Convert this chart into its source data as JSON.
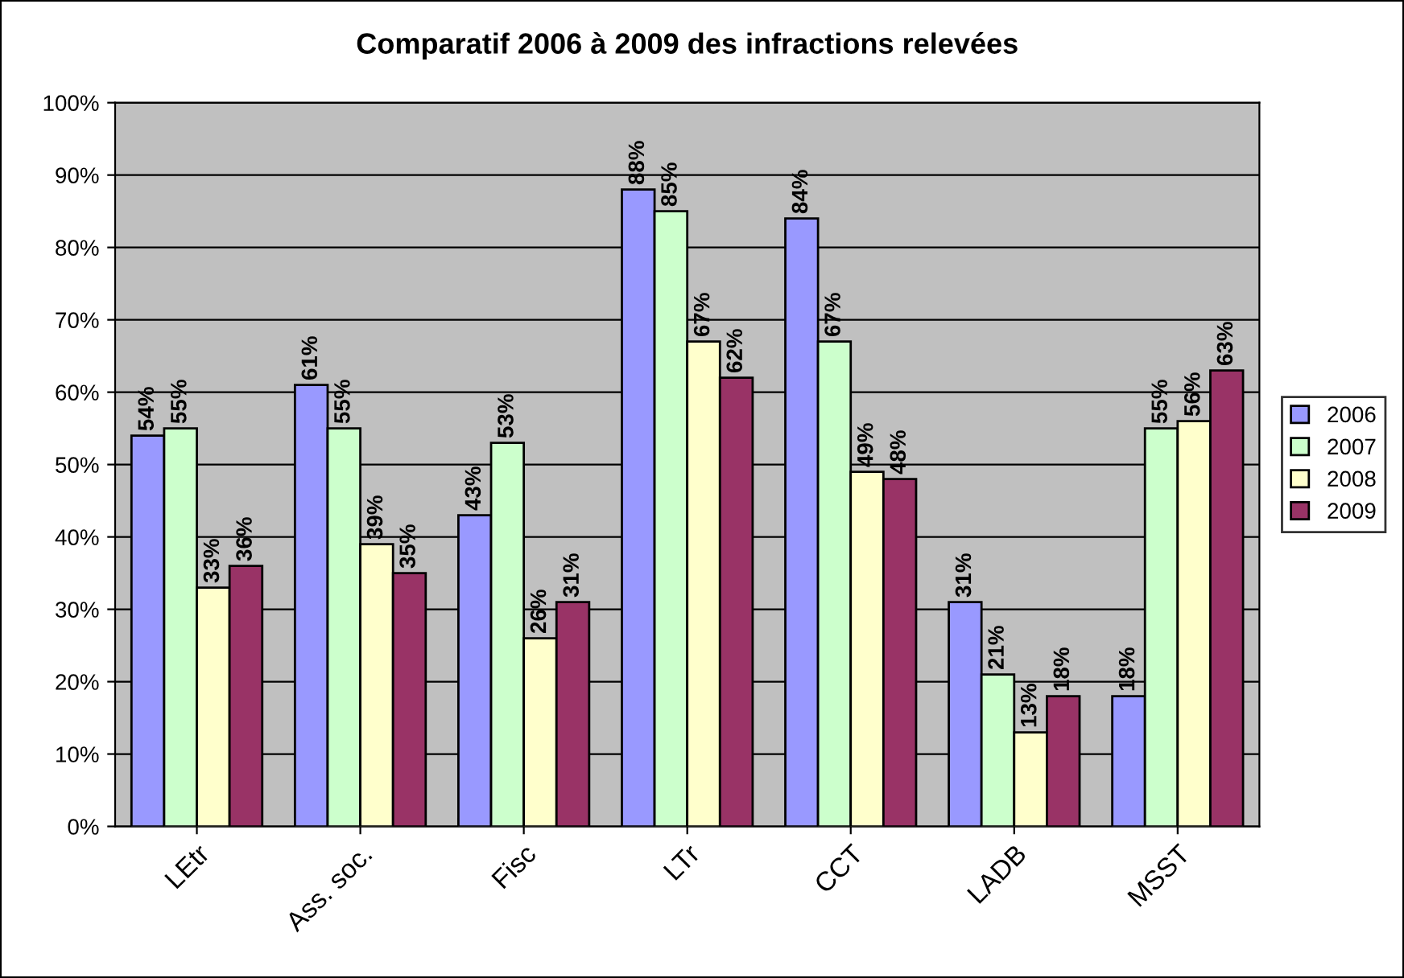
{
  "chart_data": {
    "type": "bar",
    "title": "Comparatif 2006 à 2009 des infractions relevées",
    "categories": [
      "LEtr",
      "Ass. soc.",
      "Fisc",
      "LTr",
      "CCT",
      "LADB",
      "MSST"
    ],
    "series": [
      {
        "name": "2006",
        "color": "#9999ff",
        "values": [
          54,
          61,
          43,
          88,
          84,
          31,
          18
        ],
        "value_labels": [
          "54%",
          "61%",
          "43%",
          "88%",
          "84%",
          "31%",
          "18%"
        ]
      },
      {
        "name": "2007",
        "color": "#ccffcc",
        "values": [
          55,
          55,
          53,
          85,
          67,
          21,
          55
        ],
        "value_labels": [
          "55%",
          "55%",
          "53%",
          "85%",
          "67%",
          "21%",
          "55%"
        ]
      },
      {
        "name": "2008",
        "color": "#ffffcc",
        "values": [
          33,
          39,
          26,
          67,
          49,
          13,
          56
        ],
        "value_labels": [
          "33%",
          "39%",
          "26%",
          "67%",
          "49%",
          "13%",
          "56%"
        ]
      },
      {
        "name": "2009",
        "color": "#993366",
        "values": [
          36,
          35,
          31,
          62,
          48,
          18,
          63
        ],
        "value_labels": [
          "36%",
          "35%",
          "31%",
          "62%",
          "48%",
          "18%",
          "63%"
        ]
      }
    ],
    "ylim": [
      0,
      100
    ],
    "yticks": [
      {
        "value": 0,
        "label": "0%"
      },
      {
        "value": 10,
        "label": "10%"
      },
      {
        "value": 20,
        "label": "20%"
      },
      {
        "value": 30,
        "label": "30%"
      },
      {
        "value": 40,
        "label": "40%"
      },
      {
        "value": 50,
        "label": "50%"
      },
      {
        "value": 60,
        "label": "60%"
      },
      {
        "value": 70,
        "label": "70%"
      },
      {
        "value": 80,
        "label": "80%"
      },
      {
        "value": 90,
        "label": "90%"
      },
      {
        "value": 100,
        "label": "100%"
      }
    ],
    "grid": "y",
    "legend": "right"
  }
}
